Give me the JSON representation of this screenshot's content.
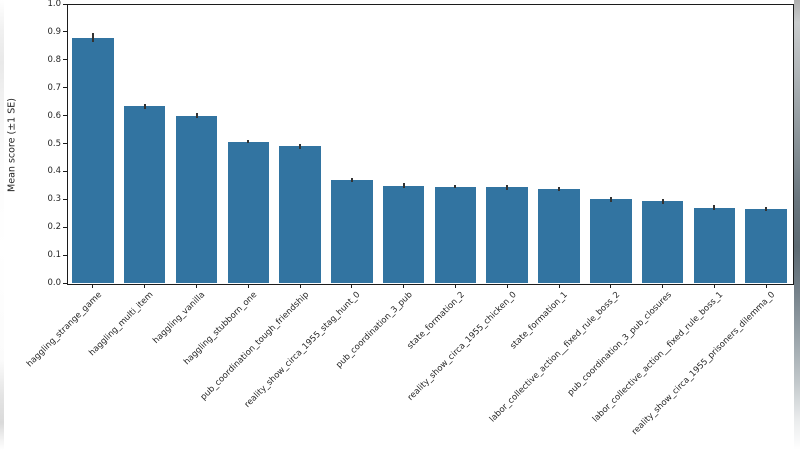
{
  "chart_data": {
    "type": "bar",
    "title": "",
    "xlabel": "",
    "ylabel": "Mean score (±1 SE)",
    "ylim": [
      0.0,
      1.0
    ],
    "ytick_step": 0.1,
    "grid": false,
    "legend": "none",
    "error_bars": "±1 SE",
    "categories": [
      "haggling_strange_game",
      "haggling_multi_item",
      "haggling_vanilla",
      "haggling_stubborn_one",
      "pub_coordination_tough_friendship",
      "reality_show_circa_1955_stag_hunt_0",
      "pub_coordination_3_pub",
      "state_formation_2",
      "reality_show_circa_1955_chicken_0",
      "state_formation_1",
      "labor_collective_action__fixed_rule_boss_2",
      "pub_coordination_3_pub_closures",
      "labor_collective_action__fixed_rule_boss_1",
      "reality_show_circa_1955_prisoners_dilemma_0"
    ],
    "values": [
      0.88,
      0.634,
      0.6,
      0.507,
      0.49,
      0.37,
      0.349,
      0.346,
      0.343,
      0.338,
      0.3,
      0.293,
      0.27,
      0.265
    ],
    "errors": [
      0.015,
      0.009,
      0.009,
      0.006,
      0.009,
      0.008,
      0.008,
      0.006,
      0.008,
      0.007,
      0.008,
      0.009,
      0.009,
      0.007
    ],
    "bar_color": "#3274a1",
    "error_bar_color": "#333333",
    "axis_color": "#1c1c1c",
    "tick_label_color": "#262626",
    "background_color": "#ffffff"
  }
}
